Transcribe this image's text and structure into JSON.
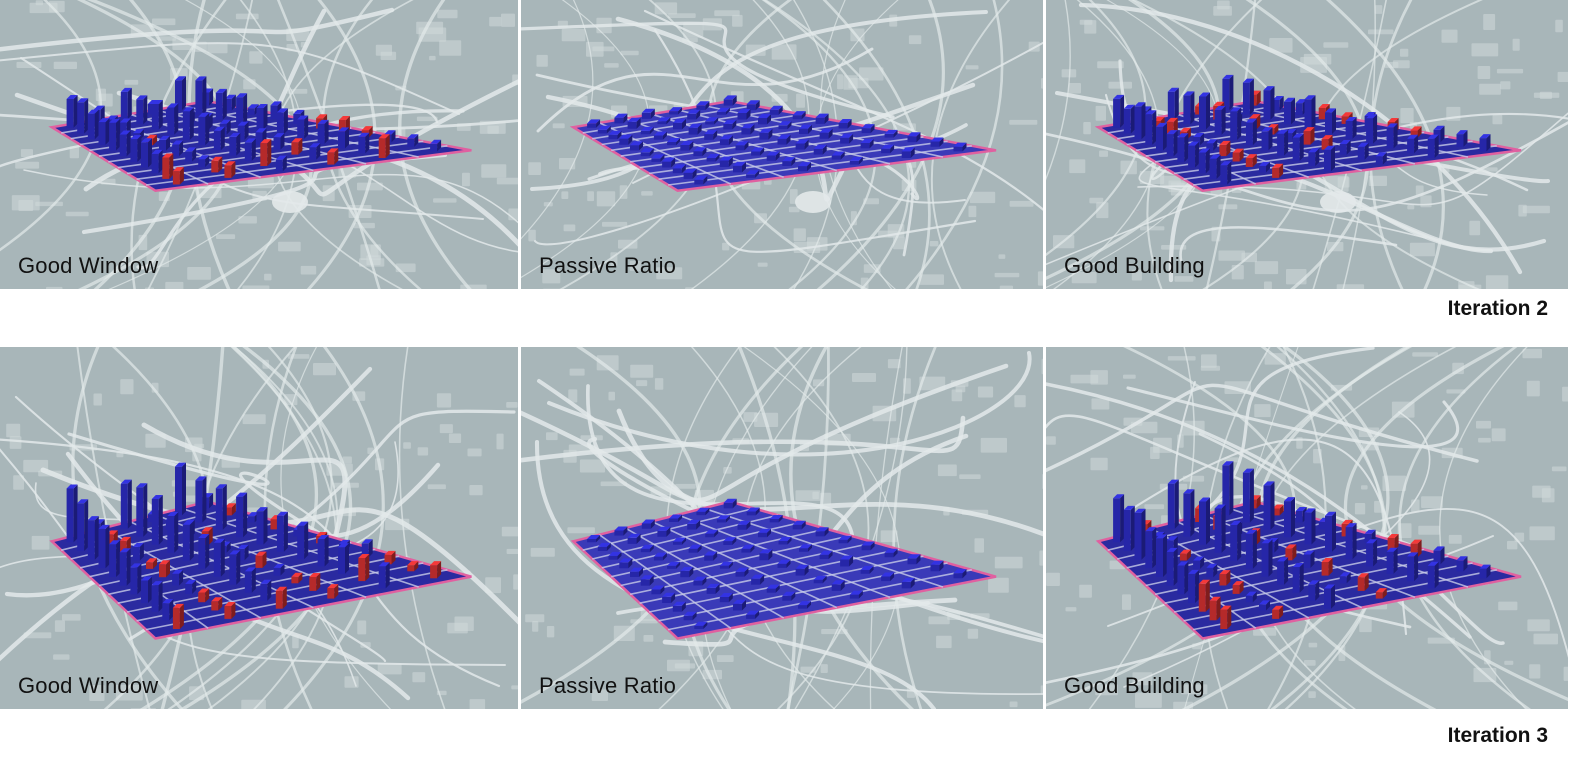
{
  "rows": [
    {
      "iteration_label": "Iteration 2",
      "panels": [
        {
          "label": "Good Window",
          "mode": "window"
        },
        {
          "label": "Passive Ratio",
          "mode": "passive"
        },
        {
          "label": "Good Building",
          "mode": "building"
        }
      ]
    },
    {
      "iteration_label": "Iteration 3",
      "panels": [
        {
          "label": "Good Window",
          "mode": "window"
        },
        {
          "label": "Passive Ratio",
          "mode": "passive"
        },
        {
          "label": "Good Building",
          "mode": "building"
        }
      ]
    }
  ],
  "colors": {
    "map_background": "#a8b6b9",
    "roads": "#e3e9ea",
    "building_blue": "#2626a8",
    "building_red": "#b52a2a",
    "site_outline": "#e060a0"
  }
}
